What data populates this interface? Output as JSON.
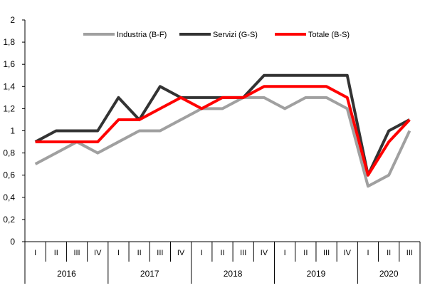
{
  "chart_data": {
    "type": "line",
    "categories": [
      "I",
      "II",
      "III",
      "IV",
      "I",
      "II",
      "III",
      "IV",
      "I",
      "II",
      "III",
      "IV",
      "I",
      "II",
      "III",
      "IV",
      "I",
      "II",
      "III"
    ],
    "years": [
      "2016",
      "2017",
      "2018",
      "2019",
      "2020"
    ],
    "quarters_per_year": [
      4,
      4,
      4,
      4,
      3
    ],
    "y_ticks": [
      "0",
      "0,2",
      "0,4",
      "0,6",
      "0,8",
      "1",
      "1,2",
      "1,4",
      "1,6",
      "1,8",
      "2"
    ],
    "ylim": [
      0,
      2
    ],
    "grid": false,
    "legend_position": "top",
    "series": [
      {
        "name": "Industria (B-F)",
        "color": "#a0a0a0",
        "values": [
          0.7,
          0.8,
          0.9,
          0.8,
          0.9,
          1.0,
          1.0,
          1.1,
          1.2,
          1.2,
          1.3,
          1.3,
          1.2,
          1.3,
          1.3,
          1.2,
          0.5,
          0.6,
          1.0
        ]
      },
      {
        "name": "Servizi (G-S)",
        "color": "#333333",
        "values": [
          0.9,
          1.0,
          1.0,
          1.0,
          1.3,
          1.1,
          1.4,
          1.3,
          1.3,
          1.3,
          1.3,
          1.5,
          1.5,
          1.5,
          1.5,
          1.5,
          0.6,
          1.0,
          1.1
        ]
      },
      {
        "name": "Totale (B-S)",
        "color": "#ff0000",
        "values": [
          0.9,
          0.9,
          0.9,
          0.9,
          1.1,
          1.1,
          1.2,
          1.3,
          1.2,
          1.3,
          1.3,
          1.4,
          1.4,
          1.4,
          1.4,
          1.3,
          0.6,
          0.9,
          1.1
        ]
      }
    ]
  }
}
